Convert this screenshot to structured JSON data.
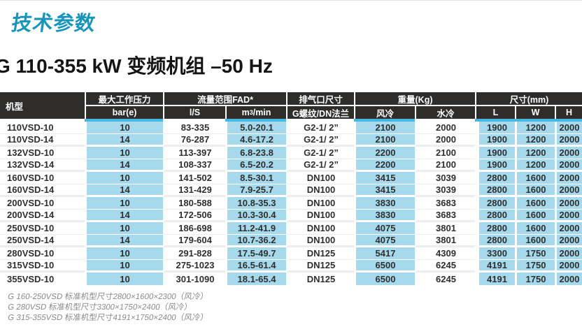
{
  "page": {
    "title": "技术参数",
    "subtitle": "G 110-355 kW 变频机组 –50 Hz",
    "accent_color": "#1895bb",
    "header_bg": "#2e2d2c",
    "cell_blue": "#a5d9eb",
    "strip_cyan": "#47b7e2"
  },
  "table": {
    "model_header": "机型",
    "groups": [
      {
        "label": "最大工作压力",
        "subs": [
          "bar(e)"
        ]
      },
      {
        "label": "流量范围FAD*",
        "subs": [
          "l/S",
          "m³/min"
        ]
      },
      {
        "label": "排气口尺寸",
        "subs": [
          "G螺纹/DN法兰"
        ]
      },
      {
        "label": "重量(Kg)",
        "subs": [
          "风冷",
          "水冷"
        ]
      },
      {
        "label": "尺寸(mm)",
        "subs": [
          "L",
          "W",
          "H"
        ]
      }
    ],
    "flow_sub_prefix": "m",
    "flow_sub_sup": "3",
    "flow_sub_suffix": "/min",
    "rows": [
      [
        "110VSD-10",
        "10",
        "83-335",
        "5.0-20.1",
        "G2-1/ 2”",
        "2100",
        "2000",
        "1900",
        "1200",
        "2000"
      ],
      [
        "110VSD-14",
        "14",
        "76-287",
        "4.6-17.2",
        "G2-1/ 2”",
        "2100",
        "2000",
        "1900",
        "1200",
        "2000"
      ],
      [
        "132VSD-10",
        "10",
        "113-397",
        "6.8-23.8",
        "G2-1/ 2”",
        "2200",
        "2100",
        "1900",
        "1200",
        "2000"
      ],
      [
        "132VSD-14",
        "14",
        "108-337",
        "6.5-20.2",
        "G2-1/ 2”",
        "2200",
        "2100",
        "1900",
        "1200",
        "2000"
      ],
      [
        "160VSD-10",
        "10",
        "141-502",
        "8.5-30.1",
        "DN100",
        "3415",
        "3039",
        "2800",
        "1600",
        "2000"
      ],
      [
        "160VSD-14",
        "14",
        "131-429",
        "7.9-25.7",
        "DN100",
        "3415",
        "3039",
        "2800",
        "1600",
        "2000"
      ],
      [
        "200VSD-10",
        "10",
        "180-588",
        "10.8-35.3",
        "DN100",
        "3830",
        "3683",
        "2800",
        "1600",
        "2000"
      ],
      [
        "200VSD-14",
        "14",
        "172-506",
        "10.3-30.4",
        "DN100",
        "3830",
        "3683",
        "2800",
        "1600",
        "2000"
      ],
      [
        "250VSD-10",
        "10",
        "186-698",
        "11.2-41.9",
        "DN100",
        "4075",
        "3801",
        "2800",
        "1600",
        "2000"
      ],
      [
        "250VSD-14",
        "14",
        "179-604",
        "10.7-36.2",
        "DN100",
        "4075",
        "3801",
        "2800",
        "1600",
        "2000"
      ],
      [
        "280VSD-10",
        "10",
        "291-828",
        "17.5-49.7",
        "DN125",
        "5417",
        "4309",
        "3300",
        "1750",
        "2000"
      ],
      [
        "315VSD-10",
        "10",
        "275-1023",
        "16.5-61.4",
        "DN125",
        "6500",
        "6245",
        "4191",
        "1750",
        "2000"
      ],
      [
        "355VSD-10",
        "10",
        "301-1090",
        "18.1-65.4",
        "DN125",
        "6500",
        "6245",
        "4191",
        "1750",
        "2000"
      ]
    ]
  },
  "footnotes": [
    "G 160-250VSD 标准机型尺寸2800×1600×2300（风冷）",
    "G 280VSD 标准机型尺寸3300×1750×2400（风冷）",
    "G 315-355VSD 标准机型尺寸4191×1750×2400（风冷）"
  ]
}
